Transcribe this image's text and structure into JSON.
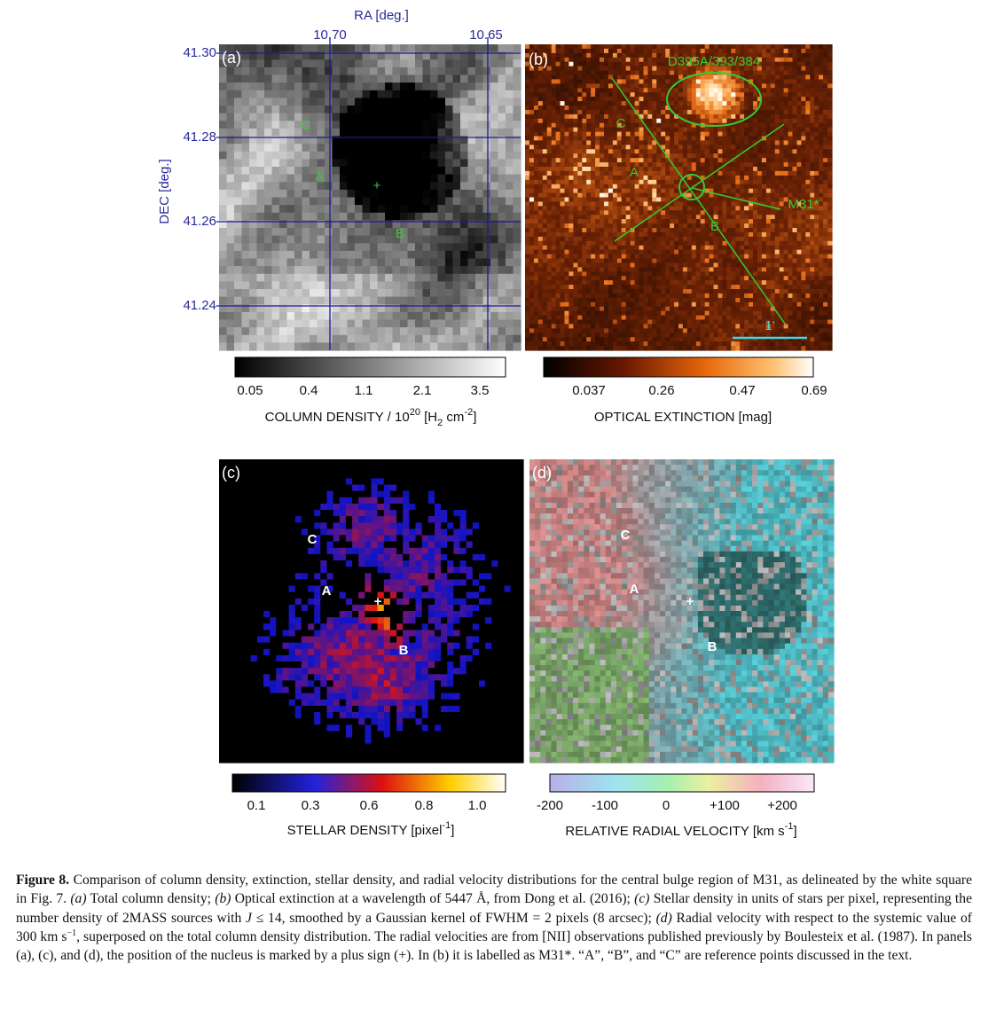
{
  "panel_a": {
    "axis_title_x": "RA [deg.]",
    "x_ticks": [
      "10.70",
      "10.65"
    ],
    "axis_title_y": "DEC [deg.]",
    "y_ticks": [
      "41.30",
      "41.28",
      "41.26",
      "41.24"
    ],
    "tag": "(a)",
    "markers": [
      "C",
      "A",
      "+",
      "B"
    ]
  },
  "panel_b": {
    "tag": "(b)",
    "region_label": "D395A/393/384",
    "markers": [
      "C",
      "A",
      "B"
    ],
    "nucleus_label": "M31*",
    "scale_label": "1'"
  },
  "panel_c": {
    "tag": "(c)",
    "markers": [
      "C",
      "A",
      "+",
      "B"
    ]
  },
  "panel_d": {
    "tag": "(d)",
    "markers": [
      "C",
      "A",
      "+",
      "B"
    ]
  },
  "colorbars": [
    {
      "ticks": [
        "0.05",
        "0.4",
        "1.1",
        "2.1",
        "3.5"
      ],
      "label": [
        "COLUMN DENSITY / 10",
        "20",
        " [H",
        "2",
        " cm",
        "-2",
        "]"
      ]
    },
    {
      "ticks": [
        "0.037",
        "0.26",
        "0.47",
        "0.69"
      ],
      "label": [
        "OPTICAL EXTINCTION [mag]"
      ]
    },
    {
      "ticks": [
        "0.1",
        "0.3",
        "0.6",
        "0.8",
        "1.0"
      ],
      "label": [
        "STELLAR DENSITY [pixel",
        "-1",
        "]"
      ]
    },
    {
      "ticks": [
        "-200",
        "-100",
        "0",
        "+100",
        "+200"
      ],
      "label": [
        "RELATIVE RADIAL VELOCITY [km s",
        "-1",
        "]"
      ]
    }
  ],
  "caption": {
    "label": "Figure 8.",
    "parts": [
      " Comparison of column density, extinction, stellar density, and radial velocity distributions for the central bulge region of M31, as delineated by the white square in Fig. 7. ",
      "(a)",
      " Total column density; ",
      "(b)",
      " Optical extinction at a wavelength of 5447 Å, from Dong et al. (2016); ",
      "(c)",
      " Stellar density in units of stars per pixel, representing the number density of 2MASS sources with ",
      "J",
      " ≤ 14, smoothed by a Gaussian kernel of FWHM = 2 pixels (8 arcsec); ",
      "(d)",
      " Radial velocity with respect to the systemic value of 300 km s",
      "−1",
      ", superposed on the total column density distribution. The radial velocities are from [NII] observations published previously by Boulesteix et al. (1987). In panels (a), (c), and (d), the position of the nucleus is marked by a plus sign (+). In (b) it is labelled as M31*. “A”, “B”, and “C” are reference points discussed in the text."
    ]
  }
}
